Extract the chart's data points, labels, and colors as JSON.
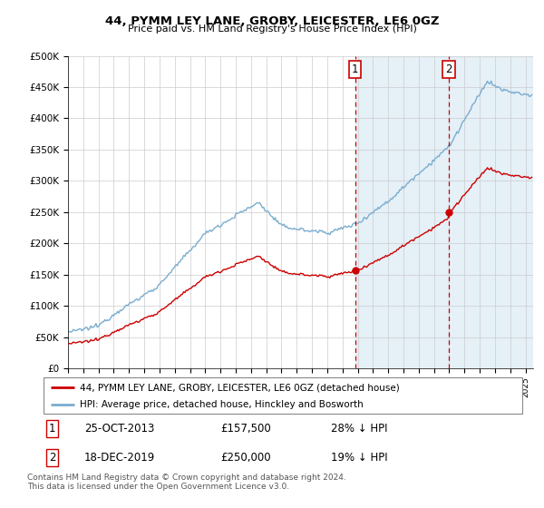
{
  "title": "44, PYMM LEY LANE, GROBY, LEICESTER, LE6 0GZ",
  "subtitle": "Price paid vs. HM Land Registry's House Price Index (HPI)",
  "ylabel_ticks": [
    "£0",
    "£50K",
    "£100K",
    "£150K",
    "£200K",
    "£250K",
    "£300K",
    "£350K",
    "£400K",
    "£450K",
    "£500K"
  ],
  "ytick_values": [
    0,
    50000,
    100000,
    150000,
    200000,
    250000,
    300000,
    350000,
    400000,
    450000,
    500000
  ],
  "xlim_start": 1995.0,
  "xlim_end": 2025.5,
  "ylim": [
    0,
    500000
  ],
  "purchase1_date": 2013.82,
  "purchase1_price": 157500,
  "purchase2_date": 2019.96,
  "purchase2_price": 250000,
  "legend_property": "44, PYMM LEY LANE, GROBY, LEICESTER, LE6 0GZ (detached house)",
  "legend_hpi": "HPI: Average price, detached house, Hinckley and Bosworth",
  "purchase1_text": "25-OCT-2013",
  "purchase1_amount": "£157,500",
  "purchase1_hpi": "28% ↓ HPI",
  "purchase2_text": "18-DEC-2019",
  "purchase2_amount": "£250,000",
  "purchase2_hpi": "19% ↓ HPI",
  "footer": "Contains HM Land Registry data © Crown copyright and database right 2024.\nThis data is licensed under the Open Government Licence v3.0.",
  "property_color": "#cc0000",
  "hpi_color": "#7aadcf",
  "vline_color": "#cc0000",
  "bg_highlight_color": "#daeaf5",
  "marker_color": "#cc0000"
}
